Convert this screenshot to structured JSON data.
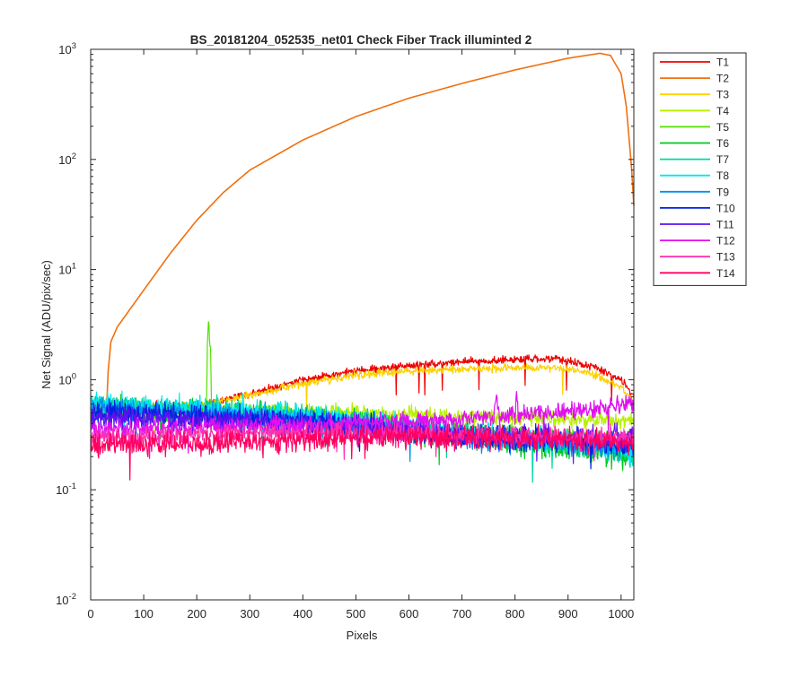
{
  "chart_data": {
    "type": "line",
    "title": "BS_20181204_052535_net01   Check Fiber     Track illuminted 2",
    "xlabel": "Pixels",
    "ylabel": "Net Signal (ADU/pix/sec)",
    "xlim": [
      0,
      1024
    ],
    "ylim": [
      0.01,
      1000
    ],
    "yscale": "log",
    "x_ticks": [
      0,
      100,
      200,
      300,
      400,
      500,
      600,
      700,
      800,
      900,
      1000
    ],
    "y_ticks": [
      {
        "value": 0.01,
        "base": "10",
        "exp": "-2"
      },
      {
        "value": 0.1,
        "base": "10",
        "exp": "-1"
      },
      {
        "value": 1,
        "base": "10",
        "exp": "0"
      },
      {
        "value": 10,
        "base": "10",
        "exp": "1"
      },
      {
        "value": 100,
        "base": "10",
        "exp": "2"
      },
      {
        "value": 1000,
        "base": "10",
        "exp": "3"
      }
    ],
    "grid": false,
    "legend_position": "outside-right",
    "series": [
      {
        "name": "T1",
        "color": "#ee0000",
        "noise": 0.03,
        "points": [
          [
            30,
            0.58
          ],
          [
            100,
            0.58
          ],
          [
            200,
            0.58
          ],
          [
            300,
            0.75
          ],
          [
            400,
            1.0
          ],
          [
            500,
            1.2
          ],
          [
            600,
            1.35
          ],
          [
            700,
            1.45
          ],
          [
            800,
            1.52
          ],
          [
            880,
            1.55
          ],
          [
            950,
            1.3
          ],
          [
            1000,
            1.0
          ],
          [
            1024,
            0.7
          ]
        ]
      },
      {
        "name": "T2",
        "color": "#f07010",
        "noise": 0.0,
        "points": [
          [
            30,
            0.55
          ],
          [
            33,
            1.2
          ],
          [
            38,
            2.2
          ],
          [
            50,
            3.0
          ],
          [
            100,
            6.5
          ],
          [
            150,
            14
          ],
          [
            200,
            28
          ],
          [
            250,
            50
          ],
          [
            300,
            80
          ],
          [
            400,
            150
          ],
          [
            500,
            245
          ],
          [
            600,
            360
          ],
          [
            700,
            490
          ],
          [
            800,
            650
          ],
          [
            900,
            830
          ],
          [
            960,
            920
          ],
          [
            980,
            880
          ],
          [
            1000,
            600
          ],
          [
            1010,
            300
          ],
          [
            1020,
            80
          ],
          [
            1024,
            38
          ]
        ]
      },
      {
        "name": "T3",
        "color": "#ffd000",
        "noise": 0.03,
        "points": [
          [
            30,
            0.55
          ],
          [
            200,
            0.58
          ],
          [
            300,
            0.72
          ],
          [
            400,
            0.92
          ],
          [
            500,
            1.1
          ],
          [
            600,
            1.2
          ],
          [
            700,
            1.25
          ],
          [
            800,
            1.28
          ],
          [
            900,
            1.25
          ],
          [
            950,
            1.1
          ],
          [
            1000,
            0.85
          ],
          [
            1024,
            0.62
          ]
        ]
      },
      {
        "name": "T4",
        "color": "#b8f000",
        "noise": 0.06,
        "points": [
          [
            0,
            0.5
          ],
          [
            200,
            0.52
          ],
          [
            300,
            0.52
          ],
          [
            500,
            0.5
          ],
          [
            600,
            0.48
          ],
          [
            700,
            0.46
          ],
          [
            800,
            0.45
          ],
          [
            900,
            0.44
          ],
          [
            1024,
            0.42
          ]
        ]
      },
      {
        "name": "T5",
        "color": "#55e000",
        "noise": 0.07,
        "points": [
          [
            0,
            0.5
          ],
          [
            218,
            0.5
          ],
          [
            220,
            2.0
          ],
          [
            223,
            3.6
          ],
          [
            226,
            2.0
          ],
          [
            228,
            0.48
          ],
          [
            500,
            0.42
          ],
          [
            700,
            0.35
          ],
          [
            1024,
            0.28
          ]
        ]
      },
      {
        "name": "T6",
        "color": "#00c820",
        "noise": 0.09,
        "points": [
          [
            0,
            0.55
          ],
          [
            300,
            0.5
          ],
          [
            500,
            0.4
          ],
          [
            700,
            0.3
          ],
          [
            900,
            0.24
          ],
          [
            1024,
            0.2
          ]
        ]
      },
      {
        "name": "T7",
        "color": "#00d8a0",
        "noise": 0.09,
        "points": [
          [
            0,
            0.6
          ],
          [
            300,
            0.5
          ],
          [
            500,
            0.42
          ],
          [
            700,
            0.32
          ],
          [
            900,
            0.25
          ],
          [
            1024,
            0.21
          ]
        ]
      },
      {
        "name": "T8",
        "color": "#00e8f0",
        "noise": 0.09,
        "points": [
          [
            0,
            0.6
          ],
          [
            300,
            0.52
          ],
          [
            500,
            0.42
          ],
          [
            700,
            0.33
          ],
          [
            900,
            0.27
          ],
          [
            1024,
            0.22
          ]
        ]
      },
      {
        "name": "T9",
        "color": "#0090f0",
        "noise": 0.09,
        "points": [
          [
            0,
            0.55
          ],
          [
            300,
            0.47
          ],
          [
            500,
            0.38
          ],
          [
            700,
            0.3
          ],
          [
            900,
            0.26
          ],
          [
            1024,
            0.24
          ]
        ]
      },
      {
        "name": "T10",
        "color": "#0020e0",
        "noise": 0.09,
        "points": [
          [
            0,
            0.5
          ],
          [
            300,
            0.45
          ],
          [
            500,
            0.38
          ],
          [
            700,
            0.3
          ],
          [
            900,
            0.28
          ],
          [
            1024,
            0.26
          ]
        ]
      },
      {
        "name": "T11",
        "color": "#6010f0",
        "noise": 0.09,
        "points": [
          [
            0,
            0.45
          ],
          [
            300,
            0.42
          ],
          [
            500,
            0.36
          ],
          [
            700,
            0.32
          ],
          [
            900,
            0.3
          ],
          [
            1024,
            0.29
          ]
        ]
      },
      {
        "name": "T12",
        "color": "#e010f0",
        "noise": 0.07,
        "points": [
          [
            0,
            0.35
          ],
          [
            300,
            0.38
          ],
          [
            500,
            0.4
          ],
          [
            700,
            0.43
          ],
          [
            760,
            0.45
          ],
          [
            765,
            0.8
          ],
          [
            770,
            0.45
          ],
          [
            800,
            0.47
          ],
          [
            803,
            0.85
          ],
          [
            806,
            0.47
          ],
          [
            900,
            0.52
          ],
          [
            1024,
            0.6
          ]
        ]
      },
      {
        "name": "T13",
        "color": "#ff30b0",
        "noise": 0.08,
        "points": [
          [
            0,
            0.3
          ],
          [
            300,
            0.32
          ],
          [
            500,
            0.33
          ],
          [
            700,
            0.32
          ],
          [
            900,
            0.3
          ],
          [
            1024,
            0.3
          ]
        ]
      },
      {
        "name": "T14",
        "color": "#ff0060",
        "noise": 0.09,
        "points": [
          [
            0,
            0.25
          ],
          [
            300,
            0.27
          ],
          [
            500,
            0.3
          ],
          [
            700,
            0.3
          ],
          [
            900,
            0.28
          ],
          [
            1024,
            0.27
          ]
        ]
      }
    ]
  }
}
